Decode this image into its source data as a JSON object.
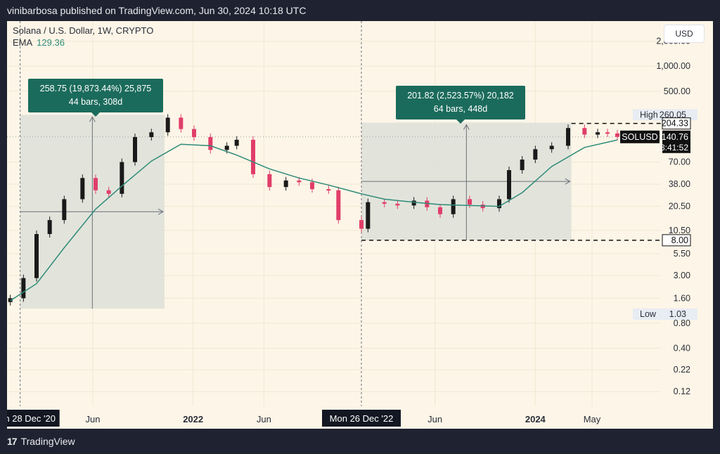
{
  "header": {
    "published_text": "vinibarbosa published on TradingView.com, Jun 30, 2024 10:18 UTC"
  },
  "legend": {
    "symbol_line": "Solana / U.S. Dollar, 1W, CRYPTO",
    "ema_label": "EMA",
    "ema_value": "129.36"
  },
  "currency_button": "USD",
  "measure_boxes": [
    {
      "line1": "258.75 (19,873.44%) 25,875",
      "line2": "44 bars, 308d"
    },
    {
      "line1": "201.82 (2,523.57%) 20,182",
      "line2": "64 bars, 448d"
    }
  ],
  "footer": {
    "logo_glyph": "17",
    "brand": "TradingView"
  },
  "colors": {
    "background": "#fdf5e7",
    "up": "#1a1a1a",
    "down": "#e03e6a",
    "ema": "#2e8b79",
    "box_fill": "#dde0d8",
    "label_fill": "#1b6b5c"
  },
  "chart_data": {
    "type": "line",
    "title": "Solana / U.S. Dollar, 1W, CRYPTO",
    "scale": "log",
    "ylim": [
      0.08,
      3500
    ],
    "y_ticks": [
      "2,000.00",
      "1,000.00",
      "500.00",
      "70.00",
      "38.00",
      "20.50",
      "10.50",
      "5.50",
      "3.00",
      "1.60",
      "0.80",
      "0.40",
      "0.22",
      "0.12"
    ],
    "y_tick_values": [
      2000,
      1000,
      500,
      70,
      38,
      20.5,
      10.5,
      5.5,
      3,
      1.6,
      0.8,
      0.4,
      0.22,
      0.12
    ],
    "x_ticks": [
      {
        "label": "Jun",
        "date": "2021-06-01",
        "bold": false
      },
      {
        "label": "2022",
        "date": "2022-01-01",
        "bold": true
      },
      {
        "label": "Jun",
        "date": "2022-06-01",
        "bold": false
      },
      {
        "label": "Jun",
        "date": "2023-06-01",
        "bold": false
      },
      {
        "label": "2024",
        "date": "2024-01-01",
        "bold": true
      },
      {
        "label": "May",
        "date": "2024-05-01",
        "bold": false
      }
    ],
    "x_range": [
      "2020-11-30",
      "2024-09-25"
    ],
    "cursor_dates": [
      {
        "label": "n 28 Dec '20",
        "date": "2020-12-28"
      },
      {
        "label": "Mon 26 Dec '22",
        "date": "2022-12-26"
      }
    ],
    "price_labels": [
      {
        "kind": "tag",
        "text": "High",
        "value": "260.05",
        "price": 260.05
      },
      {
        "kind": "level",
        "text": "",
        "value": "204.33",
        "price": 204.33
      },
      {
        "kind": "current",
        "text": "SOLUSD",
        "value": "140.76",
        "time": "13:41:52",
        "price": 140.76
      },
      {
        "kind": "level",
        "text": "",
        "value": "8.00",
        "price": 8.0
      },
      {
        "kind": "tag",
        "text": "Low",
        "value": "1.03",
        "price": 1.03
      }
    ],
    "measures": [
      {
        "start": "2020-12-28",
        "end": "2021-11-01",
        "low": 1.2,
        "high": 259.5
      },
      {
        "start": "2022-12-26",
        "end": "2024-03-18",
        "low": 8.0,
        "high": 209.0
      }
    ],
    "series": [
      {
        "name": "SOLUSD",
        "kind": "candles",
        "x": [
          "2020-12-07",
          "2021-01-04",
          "2021-02-01",
          "2021-03-01",
          "2021-04-01",
          "2021-05-10",
          "2021-06-07",
          "2021-07-05",
          "2021-08-02",
          "2021-08-30",
          "2021-10-04",
          "2021-11-08",
          "2021-12-06",
          "2022-01-03",
          "2022-02-07",
          "2022-03-14",
          "2022-04-04",
          "2022-05-09",
          "2022-06-13",
          "2022-07-18",
          "2022-08-15",
          "2022-09-12",
          "2022-10-17",
          "2022-11-07",
          "2022-12-26",
          "2023-01-09",
          "2023-02-13",
          "2023-03-13",
          "2023-04-17",
          "2023-05-15",
          "2023-06-12",
          "2023-07-10",
          "2023-08-14",
          "2023-09-11",
          "2023-10-16",
          "2023-11-06",
          "2023-12-04",
          "2024-01-01",
          "2024-02-05",
          "2024-03-11",
          "2024-04-15",
          "2024-05-13",
          "2024-06-03",
          "2024-06-24"
        ],
        "y": [
          1.6,
          2.8,
          9.5,
          14.0,
          25.0,
          45.0,
          32.0,
          29.0,
          70.0,
          140.0,
          160.0,
          240.0,
          175.0,
          140.0,
          98.0,
          110.0,
          130.0,
          50.0,
          35.0,
          42.0,
          40.0,
          33.0,
          32.0,
          14.0,
          11.0,
          23.0,
          22.0,
          21.0,
          24.0,
          20.0,
          16.5,
          25.0,
          21.5,
          19.5,
          25.0,
          56.0,
          75.0,
          100.0,
          110.0,
          180.0,
          150.0,
          160.0,
          155.0,
          140.76
        ]
      },
      {
        "name": "EMA",
        "kind": "line",
        "x": [
          "2020-12-07",
          "2021-02-01",
          "2021-04-01",
          "2021-06-07",
          "2021-08-02",
          "2021-10-04",
          "2021-12-06",
          "2022-02-07",
          "2022-04-04",
          "2022-06-13",
          "2022-08-15",
          "2022-10-17",
          "2022-12-26",
          "2023-02-13",
          "2023-04-17",
          "2023-06-12",
          "2023-08-14",
          "2023-10-16",
          "2023-12-04",
          "2024-02-05",
          "2024-04-15",
          "2024-06-24"
        ],
        "y": [
          1.5,
          2.4,
          6.5,
          19.0,
          36.0,
          72.0,
          115.0,
          110.0,
          85.0,
          58.0,
          45.0,
          37.0,
          29.0,
          25.0,
          23.0,
          21.5,
          21.0,
          20.5,
          30.0,
          62.0,
          105.0,
          129.36
        ]
      }
    ]
  }
}
